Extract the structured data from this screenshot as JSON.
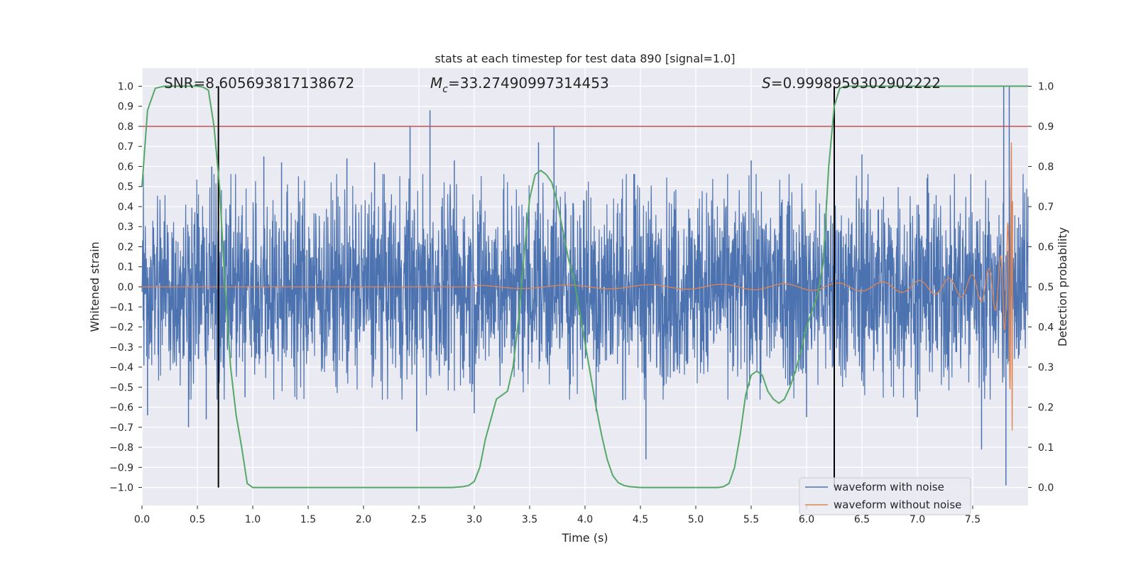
{
  "chart_data": {
    "type": "line",
    "title": "stats at each timestep for test data 890 [signal=1.0]",
    "xlabel": "Time (s)",
    "ylabel": "Whitened strain",
    "y2label": "Detection probability",
    "xlim": [
      0.0,
      8.0
    ],
    "ylim": [
      -1.09,
      1.09
    ],
    "y2lim": [
      -0.045,
      1.045
    ],
    "xticks": [
      "0.0",
      "0.5",
      "1.0",
      "1.5",
      "2.0",
      "2.5",
      "3.0",
      "3.5",
      "4.0",
      "4.5",
      "5.0",
      "5.5",
      "6.0",
      "6.5",
      "7.0",
      "7.5"
    ],
    "xtick_values": [
      0,
      0.5,
      1,
      1.5,
      2,
      2.5,
      3,
      3.5,
      4,
      4.5,
      5,
      5.5,
      6,
      6.5,
      7,
      7.5
    ],
    "yticks": [
      "1.0",
      "0.9",
      "0.8",
      "0.7",
      "0.6",
      "0.5",
      "0.4",
      "0.3",
      "0.2",
      "0.1",
      "0.0",
      "−0.1",
      "−0.2",
      "−0.3",
      "−0.4",
      "−0.5",
      "−0.6",
      "−0.7",
      "−0.8",
      "−0.9",
      "−1.0"
    ],
    "ytick_values": [
      1.0,
      0.9,
      0.8,
      0.7,
      0.6,
      0.5,
      0.4,
      0.3,
      0.2,
      0.1,
      0.0,
      -0.1,
      -0.2,
      -0.3,
      -0.4,
      -0.5,
      -0.6,
      -0.7,
      -0.8,
      -0.9,
      -1.0
    ],
    "y2ticks": [
      "1.0",
      "0.9",
      "0.8",
      "0.7",
      "0.6",
      "0.5",
      "0.4",
      "0.3",
      "0.2",
      "0.1",
      "0.0"
    ],
    "y2tick_values": [
      1.0,
      0.9,
      0.8,
      0.7,
      0.6,
      0.5,
      0.4,
      0.3,
      0.2,
      0.1,
      0.0
    ],
    "annotations": {
      "snr": "SNR=8.605693817138672",
      "mc_symbol": "M",
      "mc_sub": "c",
      "mc_value": "=33.27490997314453",
      "s_symbol": "S",
      "s_value": "=0.9998959302902222"
    },
    "threshold_line": {
      "value": 0.9,
      "axis": "right",
      "color": "#c44e52"
    },
    "vertical_markers": [
      0.69,
      6.25
    ],
    "noise": {
      "approx_amplitude": 0.45,
      "color": "#4c72b0"
    },
    "noise_spikes": [
      {
        "t": 0.05,
        "v": -0.64
      },
      {
        "t": 0.42,
        "v": -0.7
      },
      {
        "t": 0.58,
        "v": -0.66
      },
      {
        "t": 0.63,
        "v": 0.6
      },
      {
        "t": 0.93,
        "v": -0.55
      },
      {
        "t": 1.1,
        "v": 0.65
      },
      {
        "t": 1.26,
        "v": 0.62
      },
      {
        "t": 1.85,
        "v": 0.64
      },
      {
        "t": 2.1,
        "v": 0.62
      },
      {
        "t": 2.42,
        "v": 0.8
      },
      {
        "t": 2.48,
        "v": -0.72
      },
      {
        "t": 2.6,
        "v": 0.88
      },
      {
        "t": 2.82,
        "v": 0.63
      },
      {
        "t": 3.0,
        "v": -0.63
      },
      {
        "t": 3.58,
        "v": 0.72
      },
      {
        "t": 3.72,
        "v": 0.8
      },
      {
        "t": 4.1,
        "v": -0.62
      },
      {
        "t": 4.55,
        "v": -0.86
      },
      {
        "t": 5.5,
        "v": 0.63
      },
      {
        "t": 6.0,
        "v": -0.65
      },
      {
        "t": 6.5,
        "v": 0.66
      },
      {
        "t": 7.0,
        "v": -0.65
      },
      {
        "t": 7.58,
        "v": -0.81
      },
      {
        "t": 7.78,
        "v": 1.0
      },
      {
        "t": 7.8,
        "v": -0.99
      },
      {
        "t": 7.83,
        "v": 1.0
      }
    ],
    "series": [
      {
        "name": "waveform with noise",
        "color": "#4c72b0",
        "axis": "left",
        "kind": "noise"
      },
      {
        "name": "waveform without noise",
        "color": "#dd8452",
        "axis": "left",
        "kind": "chirp",
        "merger_time": 7.86,
        "peak_amplitude": 0.72,
        "onset_time": 3.0
      },
      {
        "name": "detection probability",
        "color": "#55a868",
        "axis": "right",
        "kind": "line",
        "x": [
          0.0,
          0.05,
          0.12,
          0.2,
          0.3,
          0.4,
          0.5,
          0.55,
          0.6,
          0.65,
          0.7,
          0.75,
          0.8,
          0.85,
          0.9,
          0.95,
          1.0,
          1.5,
          2.0,
          2.5,
          2.8,
          2.9,
          2.95,
          3.0,
          3.05,
          3.1,
          3.15,
          3.2,
          3.25,
          3.3,
          3.35,
          3.4,
          3.45,
          3.5,
          3.55,
          3.6,
          3.65,
          3.7,
          3.75,
          3.8,
          3.85,
          3.9,
          3.95,
          4.0,
          4.05,
          4.1,
          4.15,
          4.2,
          4.25,
          4.3,
          4.35,
          4.4,
          4.45,
          4.5,
          5.0,
          5.2,
          5.25,
          5.3,
          5.35,
          5.4,
          5.45,
          5.5,
          5.55,
          5.6,
          5.65,
          5.7,
          5.75,
          5.8,
          5.85,
          5.9,
          5.95,
          6.0,
          6.05,
          6.1,
          6.15,
          6.2,
          6.25,
          6.3,
          6.35,
          6.4,
          6.5,
          7.0,
          7.5,
          8.0
        ],
        "y": [
          0.75,
          0.94,
          0.995,
          1.0,
          1.0,
          1.0,
          1.0,
          0.998,
          0.99,
          0.9,
          0.75,
          0.5,
          0.3,
          0.18,
          0.1,
          0.01,
          0.0,
          0.0,
          0.0,
          0.0,
          0.0,
          0.002,
          0.005,
          0.015,
          0.05,
          0.12,
          0.17,
          0.22,
          0.23,
          0.24,
          0.3,
          0.42,
          0.58,
          0.72,
          0.78,
          0.79,
          0.78,
          0.76,
          0.71,
          0.64,
          0.57,
          0.52,
          0.44,
          0.36,
          0.28,
          0.2,
          0.13,
          0.07,
          0.03,
          0.012,
          0.005,
          0.002,
          0.001,
          0.0,
          0.0,
          0.0,
          0.002,
          0.01,
          0.05,
          0.13,
          0.23,
          0.28,
          0.29,
          0.28,
          0.24,
          0.22,
          0.21,
          0.22,
          0.25,
          0.29,
          0.34,
          0.4,
          0.44,
          0.48,
          0.56,
          0.8,
          0.95,
          0.995,
          1.0,
          1.0,
          1.0,
          1.0,
          1.0,
          1.0
        ]
      }
    ],
    "legend": {
      "placement": "lower-right",
      "entries": [
        {
          "label": "waveform with noise",
          "color": "#4c72b0"
        },
        {
          "label": "waveform without noise",
          "color": "#dd8452"
        }
      ]
    }
  }
}
